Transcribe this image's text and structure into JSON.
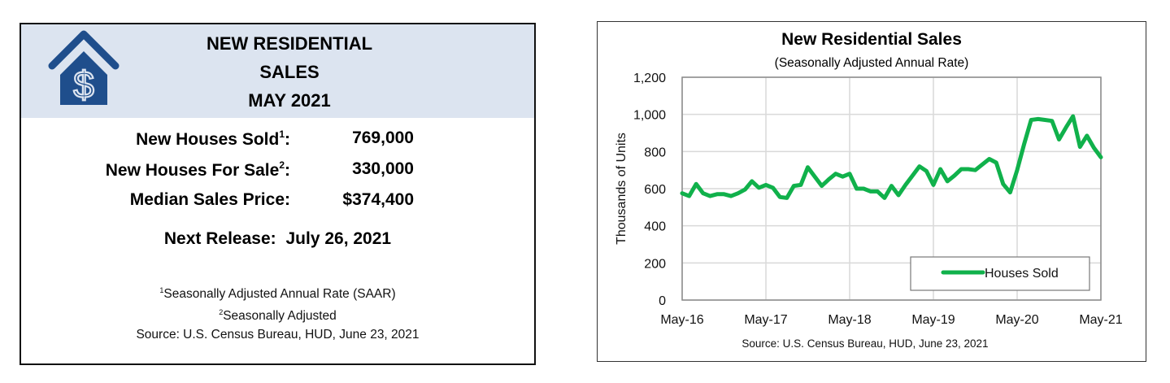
{
  "summary": {
    "title_lines": [
      "NEW RESIDENTIAL",
      "SALES",
      "MAY 2021"
    ],
    "logo_icon": "house-dollar-icon",
    "stats": [
      {
        "label": "New Houses Sold",
        "sup": "1",
        "value": "769,000"
      },
      {
        "label": "New Houses For Sale",
        "sup": "2",
        "value": "330,000"
      },
      {
        "label": "Median Sales Price",
        "sup": "",
        "value": "$374,400"
      }
    ],
    "next_release_label": "Next Release:",
    "next_release_date": "July 26, 2021",
    "notes": [
      {
        "sup": "1",
        "text": "Seasonally Adjusted Annual Rate (SAAR)"
      },
      {
        "sup": "2",
        "text": "Seasonally Adjusted"
      },
      {
        "sup": "",
        "text": "Source:  U.S. Census Bureau, HUD, June 23, 2021"
      }
    ],
    "colors": {
      "header_band": "#dce4f0",
      "logo": "#1f4e8c"
    }
  },
  "chart_data": {
    "type": "line",
    "title": "New Residential Sales",
    "subtitle": "(Seasonally Adjusted Annual Rate)",
    "xlabel": "",
    "ylabel": "Thousands of Units",
    "ylim": [
      0,
      1200
    ],
    "yticks": [
      "0",
      "200",
      "400",
      "600",
      "800",
      "1,000",
      "1,200"
    ],
    "xticks": [
      "May-16",
      "May-17",
      "May-18",
      "May-19",
      "May-20",
      "May-21"
    ],
    "grid": true,
    "legend_position": "lower right",
    "source": "Source:  U.S. Census Bureau, HUD, June 23, 2021",
    "series": [
      {
        "name": "Houses Sold",
        "color": "#10b14b",
        "x": [
          "May-16",
          "Jun-16",
          "Jul-16",
          "Aug-16",
          "Sep-16",
          "Oct-16",
          "Nov-16",
          "Dec-16",
          "Jan-17",
          "Feb-17",
          "Mar-17",
          "Apr-17",
          "May-17",
          "Jun-17",
          "Jul-17",
          "Aug-17",
          "Sep-17",
          "Oct-17",
          "Nov-17",
          "Dec-17",
          "Jan-18",
          "Feb-18",
          "Mar-18",
          "Apr-18",
          "May-18",
          "Jun-18",
          "Jul-18",
          "Aug-18",
          "Sep-18",
          "Oct-18",
          "Nov-18",
          "Dec-18",
          "Jan-19",
          "Feb-19",
          "Mar-19",
          "Apr-19",
          "May-19",
          "Jun-19",
          "Jul-19",
          "Aug-19",
          "Sep-19",
          "Oct-19",
          "Nov-19",
          "Dec-19",
          "Jan-20",
          "Feb-20",
          "Mar-20",
          "Apr-20",
          "May-20",
          "Jun-20",
          "Jul-20",
          "Aug-20",
          "Sep-20",
          "Oct-20",
          "Nov-20",
          "Dec-20",
          "Jan-21",
          "Feb-21",
          "Mar-21",
          "Apr-21",
          "May-21"
        ],
        "values": [
          575,
          560,
          625,
          575,
          560,
          570,
          570,
          560,
          575,
          595,
          640,
          605,
          620,
          605,
          555,
          550,
          615,
          620,
          715,
          665,
          615,
          650,
          680,
          665,
          680,
          600,
          600,
          585,
          585,
          550,
          615,
          565,
          620,
          670,
          720,
          695,
          620,
          705,
          640,
          670,
          705,
          705,
          700,
          730,
          760,
          740,
          625,
          580,
          700,
          840,
          970,
          975,
          970,
          965,
          865,
          930,
          990,
          825,
          885,
          820,
          769
        ]
      }
    ]
  }
}
